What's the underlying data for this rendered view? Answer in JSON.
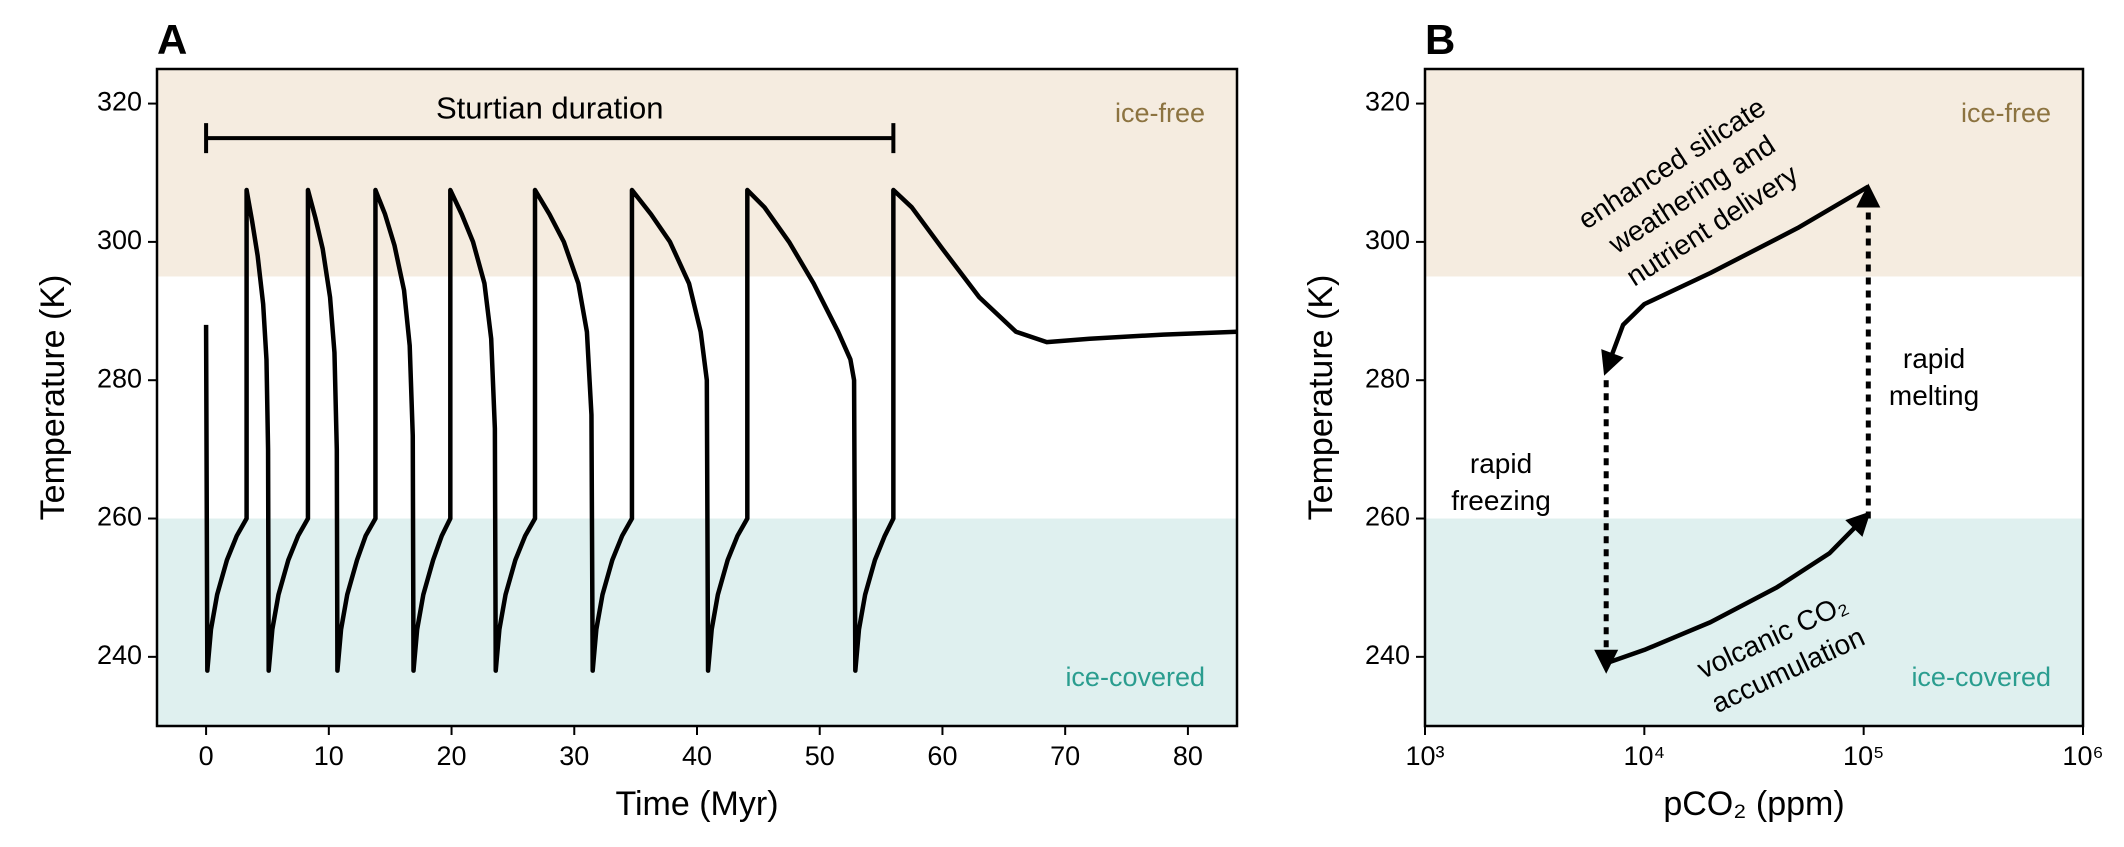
{
  "chart_data": [
    {
      "type": "line",
      "panel": "A",
      "xlabel": "Time (Myr)",
      "ylabel": "Temperature (K)",
      "xlim": [
        -4,
        84
      ],
      "ylim": [
        230,
        325
      ],
      "xticks": [
        0,
        10,
        20,
        30,
        40,
        50,
        60,
        70,
        80
      ],
      "yticks": [
        240,
        260,
        280,
        300,
        320
      ],
      "regions": [
        {
          "name": "ice-free",
          "range": [
            295,
            325
          ],
          "color": "#f5ece0",
          "text_color": "#8c7340"
        },
        {
          "name": "ice-covered",
          "range": [
            230,
            260
          ],
          "color": "#dff0ef",
          "text_color": "#2a9d8f"
        }
      ],
      "annotation": {
        "text": "Sturtian duration",
        "start": 0,
        "end": 56,
        "level": 315
      },
      "series": [
        {
          "color": "#000000",
          "x": [
            0,
            0.1,
            0.4,
            0.9,
            1.7,
            2.5,
            3.3,
            3.3,
            3.75,
            4.2,
            4.65,
            4.92,
            5.05,
            5.1,
            5.4,
            5.9,
            6.7,
            7.5,
            8.3,
            8.3,
            8.9,
            9.5,
            10.1,
            10.46,
            10.65,
            10.7,
            11.0,
            11.5,
            12.3,
            13.0,
            13.8,
            13.8,
            14.58,
            15.35,
            16.13,
            16.59,
            16.84,
            16.9,
            17.2,
            17.7,
            18.5,
            19.2,
            19.9,
            19.9,
            20.83,
            21.75,
            22.68,
            23.23,
            23.53,
            23.6,
            23.9,
            24.4,
            25.2,
            26.0,
            26.8,
            26.8,
            27.98,
            29.15,
            30.33,
            31.03,
            31.4,
            31.5,
            31.8,
            32.3,
            33.1,
            33.9,
            34.7,
            34.7,
            36.25,
            37.8,
            39.35,
            40.3,
            40.8,
            40.9,
            41.2,
            41.7,
            42.5,
            43.3,
            44.1,
            44.1,
            45.5,
            47.5,
            49.5,
            51.5,
            52.5,
            52.8,
            52.9,
            53.2,
            53.7,
            54.5,
            55.3,
            56.0,
            56.0,
            57.5,
            60,
            63,
            66,
            68.5,
            72,
            78,
            84
          ],
          "values": [
            288,
            238,
            244,
            249,
            254,
            257.5,
            260,
            307.5,
            303,
            298,
            291,
            283,
            270,
            238,
            244,
            249,
            254,
            257.5,
            260,
            307.5,
            303.5,
            299,
            292,
            284,
            270,
            238,
            244,
            249,
            254,
            257.5,
            260,
            307.5,
            304,
            299.5,
            293,
            285,
            272,
            238,
            244,
            249,
            254,
            257.5,
            260,
            307.5,
            304,
            300,
            294,
            286,
            273,
            238,
            244,
            249,
            254,
            257.5,
            260,
            307.5,
            304,
            300,
            294,
            287,
            275,
            238,
            244,
            249,
            254,
            257.5,
            260,
            307.5,
            304,
            300,
            294,
            287,
            280,
            238,
            244,
            249,
            254,
            257.5,
            260,
            307.5,
            305,
            300,
            294,
            287,
            283,
            280,
            238,
            244,
            249,
            254,
            257.5,
            260,
            307.5,
            305,
            299,
            292,
            287,
            285.5,
            286,
            286.6,
            287
          ]
        }
      ]
    },
    {
      "type": "line",
      "panel": "B",
      "xlabel": "pCO₂ (ppm)",
      "ylabel": "Temperature (K)",
      "xlog": true,
      "xlim": [
        1000,
        1000000
      ],
      "ylim": [
        230,
        325
      ],
      "xticks": [
        {
          "value": 1000,
          "label": "10³"
        },
        {
          "value": 10000,
          "label": "10⁴"
        },
        {
          "value": 100000,
          "label": "10⁵"
        },
        {
          "value": 1000000,
          "label": "10⁶"
        }
      ],
      "yticks": [
        240,
        260,
        280,
        300,
        320
      ],
      "regions": [
        {
          "name": "ice-free",
          "range": [
            295,
            325
          ],
          "color": "#f5ece0",
          "text_color": "#8c7340"
        },
        {
          "name": "ice-covered",
          "range": [
            230,
            260
          ],
          "color": "#dff0ef",
          "text_color": "#2a9d8f"
        }
      ],
      "series": [
        {
          "color": "#000000",
          "style": "solid",
          "x": [
            6600,
            10000,
            20000,
            40000,
            70000,
            100000
          ],
          "values": [
            239,
            241,
            245,
            250,
            255,
            260
          ]
        },
        {
          "color": "#000000",
          "style": "dashed",
          "x": [
            105000,
            105000
          ],
          "values": [
            260,
            307
          ]
        },
        {
          "color": "#000000",
          "style": "solid",
          "x": [
            105000,
            50000,
            20000,
            10000,
            8000,
            6800
          ],
          "values": [
            308,
            302,
            295.5,
            291,
            288,
            282
          ]
        },
        {
          "color": "#000000",
          "style": "dashed",
          "x": [
            6700,
            6700
          ],
          "values": [
            280,
            239
          ]
        }
      ],
      "annotations": [
        [
          "enhanced silicate",
          "weathering and",
          "nutrient delivery"
        ],
        [
          "rapid",
          "melting"
        ],
        [
          "rapid",
          "freezing"
        ],
        [
          "volcanic CO₂",
          "accumulation"
        ]
      ]
    }
  ]
}
